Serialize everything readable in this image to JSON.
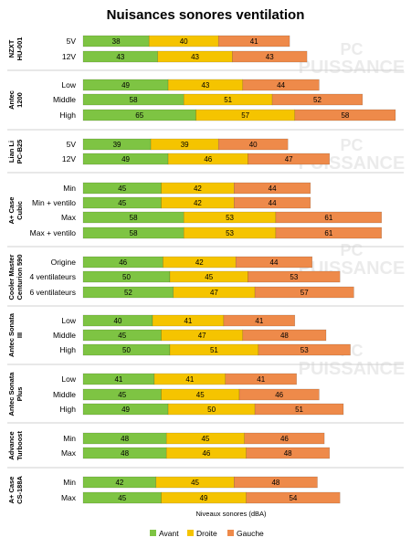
{
  "chart_data": {
    "type": "bar",
    "orientation": "horizontal",
    "stacked": true,
    "title": "Nuisances sonores ventilation",
    "xlabel": "Niveaux sonores (dBA)",
    "ylabel": "",
    "watermark": "PUISSANCE PC",
    "colors": {
      "Avant": "#7ec443",
      "Droite": "#f5c400",
      "Gauche": "#ee8a4a"
    },
    "legend": {
      "position": "bottom",
      "entries": [
        "Avant",
        "Droite",
        "Gauche"
      ]
    },
    "groups": [
      {
        "name": "NZXT HU-001",
        "rows": [
          {
            "label": "5V",
            "values": [
              38,
              40,
              41
            ]
          },
          {
            "label": "12V",
            "values": [
              43,
              43,
              43
            ]
          }
        ]
      },
      {
        "name": "Antec 1200",
        "rows": [
          {
            "label": "Low",
            "values": [
              49,
              43,
              44
            ]
          },
          {
            "label": "Middle",
            "values": [
              58,
              51,
              52
            ]
          },
          {
            "label": "High",
            "values": [
              65,
              57,
              58
            ]
          }
        ]
      },
      {
        "name": "Lian Li PC-B25",
        "rows": [
          {
            "label": "5V",
            "values": [
              39,
              39,
              40
            ]
          },
          {
            "label": "12V",
            "values": [
              49,
              46,
              47
            ]
          }
        ]
      },
      {
        "name": "A+ Case Cubic",
        "rows": [
          {
            "label": "Min",
            "values": [
              45,
              42,
              44
            ]
          },
          {
            "label": "Min + ventilo",
            "values": [
              45,
              42,
              44
            ]
          },
          {
            "label": "Max",
            "values": [
              58,
              53,
              61
            ]
          },
          {
            "label": "Max + ventilo",
            "values": [
              58,
              53,
              61
            ]
          }
        ]
      },
      {
        "name": "Cooler Master Centurion 590",
        "rows": [
          {
            "label": "Origine",
            "values": [
              46,
              42,
              44
            ]
          },
          {
            "label": "4 ventilateurs",
            "values": [
              50,
              45,
              53
            ]
          },
          {
            "label": "6 ventilateurs",
            "values": [
              52,
              47,
              57
            ]
          }
        ]
      },
      {
        "name": "Antec Sonata III",
        "rows": [
          {
            "label": "Low",
            "values": [
              40,
              41,
              41
            ]
          },
          {
            "label": "Middle",
            "values": [
              45,
              47,
              48
            ]
          },
          {
            "label": "High",
            "values": [
              50,
              51,
              53
            ]
          }
        ]
      },
      {
        "name": "Antec Sonata Plus",
        "rows": [
          {
            "label": "Low",
            "values": [
              41,
              41,
              41
            ]
          },
          {
            "label": "Middle",
            "values": [
              45,
              45,
              46
            ]
          },
          {
            "label": "High",
            "values": [
              49,
              50,
              51
            ]
          }
        ]
      },
      {
        "name": "Advance Turboost",
        "rows": [
          {
            "label": "Min",
            "values": [
              48,
              45,
              46
            ]
          },
          {
            "label": "Max",
            "values": [
              48,
              46,
              48
            ]
          }
        ]
      },
      {
        "name": "A+ Case CS-188A",
        "rows": [
          {
            "label": "Min",
            "values": [
              42,
              45,
              48
            ]
          },
          {
            "label": "Max",
            "values": [
              45,
              49,
              54
            ]
          }
        ]
      }
    ]
  }
}
